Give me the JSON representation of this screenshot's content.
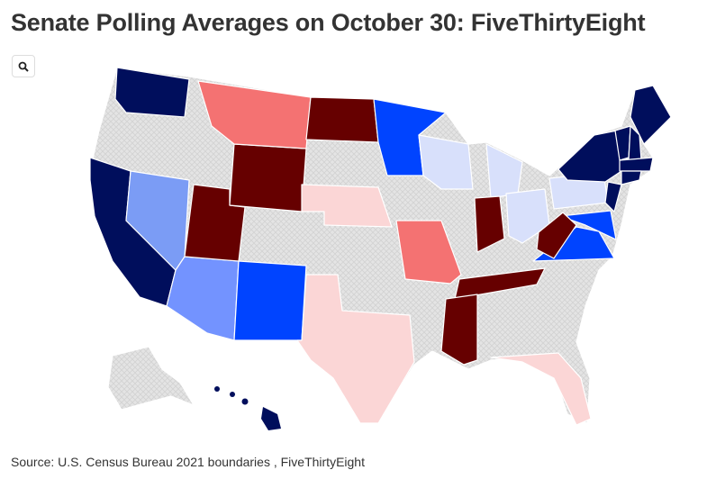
{
  "title": "Senate Polling Averages on October 30: FiveThirtyEight",
  "source": "Source: U.S. Census Bureau 2021 boundaries , FiveThirtyEight"
}
